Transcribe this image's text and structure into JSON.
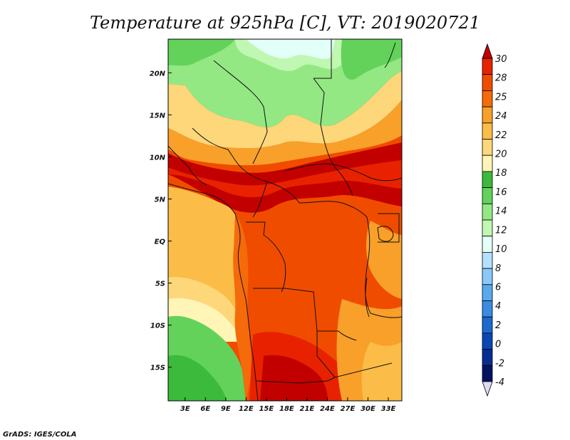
{
  "chart_data": {
    "type": "heatmap",
    "title": "Temperature at 925hPa [C], VT: 2019020721",
    "x_tick_labels": [
      "3E",
      "6E",
      "9E",
      "12E",
      "15E",
      "18E",
      "21E",
      "24E",
      "27E",
      "30E",
      "33E"
    ],
    "y_tick_labels": [
      "20N",
      "15N",
      "10N",
      "5N",
      "EQ",
      "5S",
      "10S",
      "15S"
    ],
    "x_range": [
      0.5,
      35.0
    ],
    "y_range": [
      -19.0,
      24.0
    ],
    "colorbar": {
      "tick_labels": [
        "30",
        "28",
        "25",
        "24",
        "22",
        "20",
        "18",
        "16",
        "14",
        "12",
        "10",
        "8",
        "6",
        "4",
        "2",
        "0",
        "-2",
        "-4"
      ],
      "colors": [
        "#c30000",
        "#e82200",
        "#f04c00",
        "#f56a0a",
        "#f8a02a",
        "#fbbd47",
        "#fdd77a",
        "#fff5b7",
        "#3cba3c",
        "#62d25b",
        "#93e883",
        "#c0f7b2",
        "#e2fff8",
        "#b2e2ff",
        "#8ac8f9",
        "#5aa9ee",
        "#3a8ce2",
        "#1d69cf",
        "#0a47b5",
        "#062c92",
        "#04135f",
        "#dcdcf2"
      ]
    },
    "credit": "GrADS: IGES/COLA"
  }
}
